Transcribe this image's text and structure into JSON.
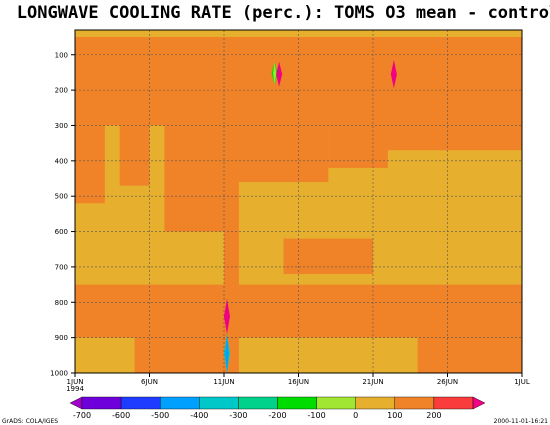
{
  "chart_data": {
    "type": "heatmap",
    "title": "LONGWAVE COOLING RATE (perc.): TOMS O3 mean - control",
    "x_ticks": [
      {
        "date": "1994-06-01",
        "label": "1JUN",
        "sublabel": "1994"
      },
      {
        "date": "1994-06-06",
        "label": "6JUN"
      },
      {
        "date": "1994-06-11",
        "label": "11JUN"
      },
      {
        "date": "1994-06-16",
        "label": "16JUN"
      },
      {
        "date": "1994-06-21",
        "label": "21JUN"
      },
      {
        "date": "1994-06-26",
        "label": "26JUN"
      },
      {
        "date": "1994-07-01",
        "label": "1JUL"
      }
    ],
    "xlim": [
      "1994-06-01",
      "1994-07-01"
    ],
    "y_ticks": [
      100,
      200,
      300,
      400,
      500,
      600,
      700,
      800,
      900,
      1000
    ],
    "ylim": [
      1000,
      30
    ],
    "grid": true,
    "colorbar": {
      "levels": [
        -700,
        -600,
        -500,
        -400,
        -300,
        -200,
        -100,
        0,
        100,
        200
      ],
      "colors": [
        "#a000c8",
        "#6e00dc",
        "#1e3cff",
        "#00a0ff",
        "#00c8c8",
        "#00d28c",
        "#00dc00",
        "#a0e632",
        "#e6af2d",
        "#f08228",
        "#fa3c3c",
        "#f00082"
      ]
    },
    "regions": [
      {
        "date_from": "1994-06-01",
        "date_to": "1994-07-01",
        "p_from": 30,
        "p_to": 1000,
        "bin": "0 to 100"
      },
      {
        "date_from": "1994-06-01",
        "date_to": "1994-07-01",
        "p_from": 50,
        "p_to": 300,
        "bin": "100 to 200"
      },
      {
        "date_from": "1994-06-01",
        "date_to": "1994-06-03",
        "p_from": 300,
        "p_to": 520,
        "bin": "100 to 200"
      },
      {
        "date_from": "1994-06-04",
        "date_to": "1994-06-06",
        "p_from": 300,
        "p_to": 470,
        "bin": "100 to 200"
      },
      {
        "date_from": "1994-06-07",
        "date_to": "1994-06-11",
        "p_from": 300,
        "p_to": 600,
        "bin": "100 to 200"
      },
      {
        "date_from": "1994-06-11",
        "date_to": "1994-06-12",
        "p_from": 300,
        "p_to": 1000,
        "bin": "100 to 200"
      },
      {
        "date_from": "1994-06-12",
        "date_to": "1994-06-18",
        "p_from": 300,
        "p_to": 460,
        "bin": "100 to 200"
      },
      {
        "date_from": "1994-06-18",
        "date_to": "1994-06-22",
        "p_from": 300,
        "p_to": 420,
        "bin": "100 to 200"
      },
      {
        "date_from": "1994-06-22",
        "date_to": "1994-07-01",
        "p_from": 300,
        "p_to": 370,
        "bin": "100 to 200"
      },
      {
        "date_from": "1994-06-01",
        "date_to": "1994-07-01",
        "p_from": 750,
        "p_to": 900,
        "bin": "100 to 200"
      },
      {
        "date_from": "1994-06-05",
        "date_to": "1994-06-11",
        "p_from": 890,
        "p_to": 1000,
        "bin": "100 to 200"
      },
      {
        "date_from": "1994-06-24",
        "date_to": "1994-07-01",
        "p_from": 870,
        "p_to": 1000,
        "bin": "100 to 200"
      },
      {
        "date_from": "1994-06-15",
        "date_to": "1994-06-21",
        "p_from": 620,
        "p_to": 720,
        "bin": "100 to 200"
      }
    ],
    "spikes": [
      {
        "date": "1994-06-14.4",
        "p_from": 120,
        "p_to": 185,
        "bins": [
          "-200 to -100",
          "-100 to 0"
        ]
      },
      {
        "date": "1994-06-14.7",
        "p_from": 120,
        "p_to": 190,
        "bins": [
          "200 to 300"
        ]
      },
      {
        "date": "1994-06-22.4",
        "p_from": 115,
        "p_to": 195,
        "bins": [
          "200 to 300"
        ]
      },
      {
        "date": "1994-06-11.2",
        "p_from": 790,
        "p_to": 890,
        "bins": [
          "200 to 300"
        ]
      },
      {
        "date": "1994-06-11.2",
        "p_from": 890,
        "p_to": 1000,
        "bins": [
          "-400 to -300",
          "-500 to -400"
        ]
      }
    ]
  },
  "footer": {
    "left": "GrADS: COLA/IGES",
    "right": "2000-11-01-16:21"
  }
}
